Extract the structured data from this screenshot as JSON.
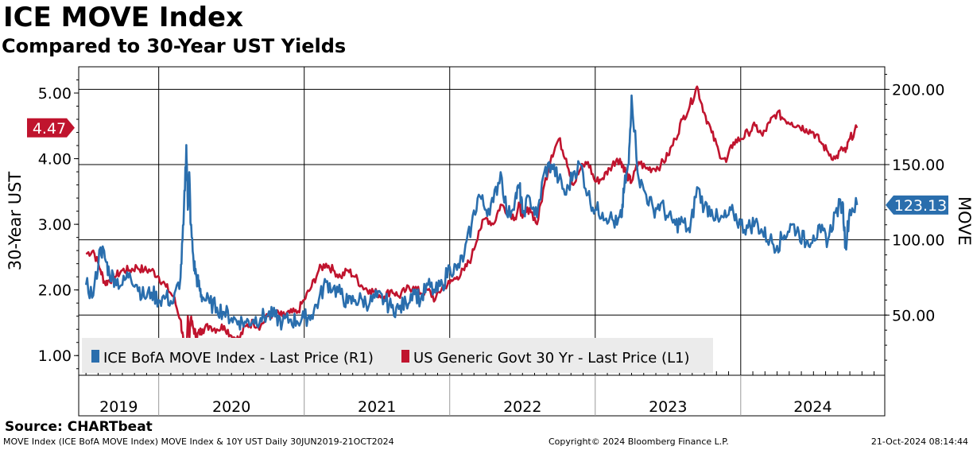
{
  "header": {
    "title": "ICE MOVE Index",
    "subtitle": "Compared to 30-Year UST Yields"
  },
  "source": "Source: CHARTbeat",
  "footer": {
    "left": "MOVE Index (ICE BofA MOVE Index) MOVE Index & 10Y UST  Daily 30JUN2019-21OCT2024",
    "mid": "Copyright© 2024 Bloomberg Finance L.P.",
    "right": "21-Oct-2024 08:14:44"
  },
  "colors": {
    "move": "#2a6ead",
    "ust": "#c0142e",
    "legend_bg": "#ebebeb"
  },
  "chart_data": {
    "type": "line",
    "title": "ICE MOVE Index",
    "subtitle": "Compared to 30-Year UST Yields",
    "x_range": [
      2019.45,
      2024.99
    ],
    "x_years": [
      "2019",
      "2020",
      "2021",
      "2022",
      "2023",
      "2024"
    ],
    "left_axis": {
      "label": "30-Year UST",
      "ylim": [
        0.7,
        5.4
      ],
      "ticks": [
        "1.00",
        "2.00",
        "3.00",
        "4.00",
        "5.00"
      ],
      "tick_values": [
        1,
        2,
        3,
        4,
        5
      ]
    },
    "right_axis": {
      "label": "MOVE",
      "ylim": [
        10,
        215
      ],
      "ticks": [
        "50.00",
        "100.00",
        "150.00",
        "200.00"
      ],
      "tick_values": [
        50,
        100,
        150,
        200
      ]
    },
    "grid": true,
    "legend_position": "bottom-left",
    "series": [
      {
        "name": "ICE BofA MOVE Index - Last Price (R1)",
        "axis": "right",
        "last_value": 123.13,
        "last_label": "123.13",
        "x": [
          2019.5,
          2019.55,
          2019.6,
          2019.63,
          2019.66,
          2019.7,
          2019.75,
          2019.8,
          2019.85,
          2019.9,
          2019.95,
          2020.0,
          2020.05,
          2020.1,
          2020.15,
          2020.17,
          2020.19,
          2020.2,
          2020.21,
          2020.22,
          2020.24,
          2020.26,
          2020.28,
          2020.3,
          2020.35,
          2020.4,
          2020.45,
          2020.5,
          2020.55,
          2020.6,
          2020.65,
          2020.7,
          2020.75,
          2020.8,
          2020.85,
          2020.9,
          2020.95,
          2021.0,
          2021.05,
          2021.1,
          2021.15,
          2021.2,
          2021.25,
          2021.3,
          2021.35,
          2021.4,
          2021.45,
          2021.5,
          2021.55,
          2021.6,
          2021.65,
          2021.7,
          2021.75,
          2021.8,
          2021.85,
          2021.9,
          2021.95,
          2022.0,
          2022.05,
          2022.1,
          2022.15,
          2022.2,
          2022.25,
          2022.3,
          2022.35,
          2022.4,
          2022.45,
          2022.48,
          2022.5,
          2022.55,
          2022.6,
          2022.65,
          2022.7,
          2022.75,
          2022.8,
          2022.85,
          2022.9,
          2022.95,
          2023.0,
          2023.05,
          2023.1,
          2023.15,
          2023.18,
          2023.2,
          2023.23,
          2023.25,
          2023.3,
          2023.35,
          2023.4,
          2023.45,
          2023.5,
          2023.55,
          2023.6,
          2023.65,
          2023.7,
          2023.75,
          2023.8,
          2023.85,
          2023.9,
          2023.95,
          2024.0,
          2024.05,
          2024.1,
          2024.15,
          2024.2,
          2024.25,
          2024.3,
          2024.35,
          2024.4,
          2024.45,
          2024.5,
          2024.55,
          2024.6,
          2024.65,
          2024.7,
          2024.72,
          2024.75,
          2024.8
        ],
        "values": [
          70,
          63,
          95,
          88,
          78,
          74,
          70,
          78,
          70,
          62,
          65,
          60,
          62,
          58,
          75,
          110,
          163,
          120,
          145,
          110,
          85,
          75,
          68,
          62,
          58,
          55,
          52,
          48,
          46,
          45,
          47,
          48,
          50,
          49,
          45,
          47,
          46,
          48,
          50,
          60,
          72,
          68,
          64,
          58,
          60,
          60,
          58,
          62,
          60,
          55,
          54,
          58,
          67,
          60,
          70,
          65,
          70,
          82,
          80,
          90,
          110,
          130,
          120,
          125,
          145,
          115,
          128,
          135,
          118,
          128,
          115,
          145,
          150,
          140,
          130,
          145,
          150,
          130,
          120,
          118,
          115,
          110,
          115,
          135,
          150,
          196,
          140,
          130,
          120,
          124,
          115,
          110,
          112,
          105,
          135,
          122,
          120,
          112,
          115,
          118,
          110,
          108,
          112,
          105,
          100,
          96,
          103,
          110,
          105,
          98,
          103,
          105,
          100,
          118,
          125,
          95,
          120,
          123.13
        ]
      },
      {
        "name": "US Generic Govt 30 Yr - Last Price (L1)",
        "axis": "left",
        "last_value": 4.47,
        "last_label": "4.47",
        "x": [
          2019.5,
          2019.55,
          2019.6,
          2019.63,
          2019.66,
          2019.7,
          2019.75,
          2019.8,
          2019.85,
          2019.9,
          2019.95,
          2020.0,
          2020.05,
          2020.1,
          2020.15,
          2020.17,
          2020.19,
          2020.2,
          2020.21,
          2020.22,
          2020.24,
          2020.26,
          2020.28,
          2020.3,
          2020.35,
          2020.4,
          2020.45,
          2020.5,
          2020.55,
          2020.6,
          2020.65,
          2020.7,
          2020.75,
          2020.8,
          2020.85,
          2020.9,
          2020.95,
          2021.0,
          2021.05,
          2021.1,
          2021.15,
          2021.2,
          2021.25,
          2021.3,
          2021.35,
          2021.4,
          2021.45,
          2021.5,
          2021.55,
          2021.6,
          2021.65,
          2021.7,
          2021.75,
          2021.8,
          2021.85,
          2021.9,
          2021.95,
          2022.0,
          2022.05,
          2022.1,
          2022.15,
          2022.2,
          2022.25,
          2022.3,
          2022.35,
          2022.4,
          2022.45,
          2022.48,
          2022.5,
          2022.55,
          2022.6,
          2022.65,
          2022.7,
          2022.75,
          2022.8,
          2022.85,
          2022.9,
          2022.95,
          2023.0,
          2023.05,
          2023.1,
          2023.15,
          2023.18,
          2023.2,
          2023.23,
          2023.25,
          2023.3,
          2023.35,
          2023.4,
          2023.45,
          2023.5,
          2023.55,
          2023.6,
          2023.65,
          2023.7,
          2023.75,
          2023.8,
          2023.85,
          2023.9,
          2023.95,
          2024.0,
          2024.05,
          2024.1,
          2024.15,
          2024.2,
          2024.25,
          2024.3,
          2024.35,
          2024.4,
          2024.45,
          2024.5,
          2024.55,
          2024.6,
          2024.65,
          2024.7,
          2024.72,
          2024.75,
          2024.8
        ],
        "values": [
          2.55,
          2.6,
          2.3,
          2.1,
          2.15,
          2.2,
          2.3,
          2.3,
          2.35,
          2.3,
          2.3,
          2.2,
          2.05,
          1.9,
          1.55,
          1.2,
          1.05,
          1.6,
          1.3,
          1.55,
          1.4,
          1.3,
          1.35,
          1.4,
          1.45,
          1.4,
          1.45,
          1.3,
          1.25,
          1.45,
          1.5,
          1.45,
          1.6,
          1.65,
          1.6,
          1.65,
          1.65,
          1.85,
          2.05,
          2.3,
          2.4,
          2.3,
          2.2,
          2.3,
          2.2,
          2.05,
          2.0,
          1.95,
          1.9,
          2.0,
          1.9,
          2.0,
          2.05,
          1.95,
          2.0,
          1.85,
          2.05,
          2.1,
          2.2,
          2.3,
          2.5,
          2.9,
          3.1,
          3.0,
          3.3,
          3.2,
          3.1,
          3.3,
          3.1,
          3.25,
          3.0,
          3.6,
          4.05,
          4.3,
          4.0,
          3.6,
          3.85,
          3.95,
          3.65,
          3.7,
          3.85,
          4.0,
          3.95,
          3.85,
          3.7,
          3.65,
          3.95,
          3.85,
          3.85,
          3.9,
          4.05,
          4.3,
          4.6,
          4.8,
          5.1,
          4.7,
          4.4,
          4.1,
          3.95,
          4.25,
          4.3,
          4.4,
          4.5,
          4.35,
          4.55,
          4.7,
          4.6,
          4.55,
          4.5,
          4.45,
          4.4,
          4.25,
          4.1,
          4.0,
          4.15,
          4.1,
          4.3,
          4.47
        ]
      }
    ]
  }
}
